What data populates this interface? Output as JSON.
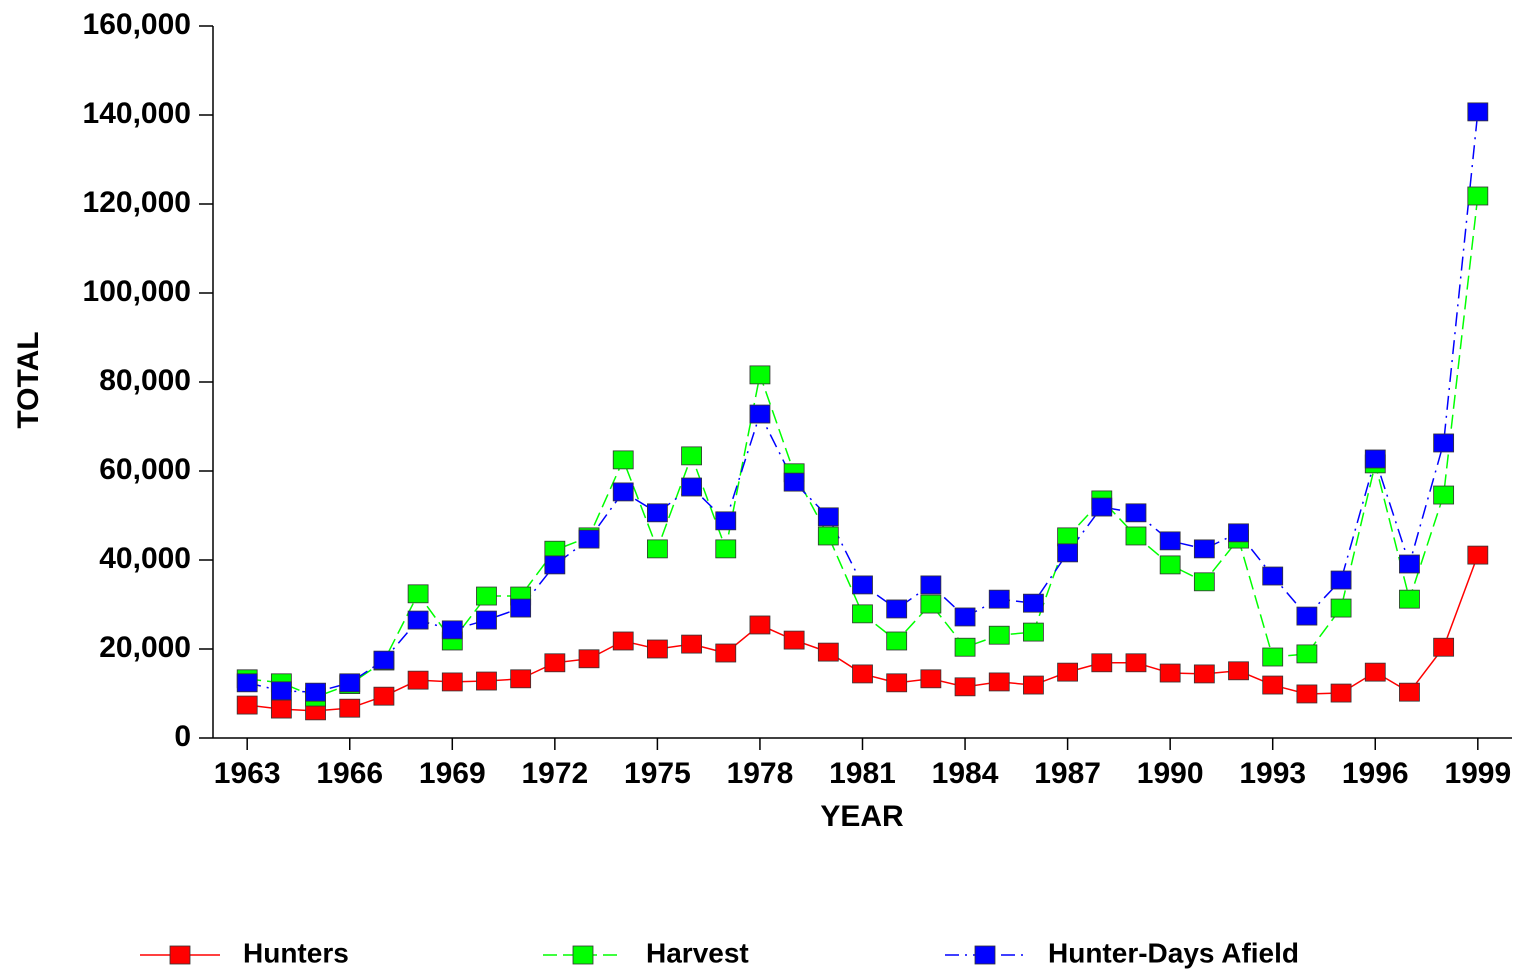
{
  "chart_data": {
    "type": "line",
    "x": [
      1963,
      1964,
      1965,
      1966,
      1967,
      1968,
      1969,
      1970,
      1971,
      1972,
      1973,
      1974,
      1975,
      1976,
      1977,
      1978,
      1979,
      1980,
      1981,
      1982,
      1983,
      1984,
      1985,
      1986,
      1987,
      1988,
      1989,
      1990,
      1991,
      1992,
      1993,
      1994,
      1995,
      1996,
      1997,
      1998,
      1999
    ],
    "series": [
      {
        "name": "Hunters",
        "color": "#ff0000",
        "style": "solid",
        "values": [
          7400,
          6500,
          6100,
          6700,
          9400,
          13000,
          12600,
          12800,
          13300,
          16900,
          17800,
          21800,
          20000,
          21100,
          19100,
          25400,
          22000,
          19300,
          14400,
          12400,
          13300,
          11500,
          12600,
          11900,
          14800,
          16900,
          16900,
          14600,
          14400,
          15100,
          11900,
          9900,
          10100,
          14800,
          10300,
          20400,
          41100
        ]
      },
      {
        "name": "Harvest",
        "color": "#00ff00",
        "style": "dashed",
        "values": [
          13300,
          12400,
          9200,
          12000,
          17300,
          32400,
          21800,
          31900,
          31900,
          42200,
          45200,
          62500,
          42500,
          63400,
          42500,
          81600,
          59600,
          45400,
          27900,
          21800,
          30100,
          20400,
          23100,
          23800,
          45200,
          53500,
          45400,
          38900,
          35100,
          44700,
          18200,
          18900,
          29200,
          61600,
          31200,
          54600,
          121800
        ]
      },
      {
        "name": "Hunter-Days Afield",
        "color": "#0000ff",
        "style": "dashdot",
        "values": [
          12400,
          10600,
          10300,
          12400,
          17500,
          26500,
          24300,
          26500,
          29200,
          38900,
          44700,
          55300,
          50600,
          56400,
          48800,
          72800,
          57500,
          49700,
          34400,
          29000,
          34400,
          27200,
          31200,
          30300,
          41600,
          51900,
          50600,
          44300,
          42500,
          46100,
          36400,
          27400,
          35500,
          62700,
          39100,
          66300,
          140700
        ]
      }
    ],
    "x_label": "YEAR",
    "y_label": "TOTAL",
    "xlim": [
      1962,
      2000
    ],
    "xticks": [
      1963,
      1966,
      1969,
      1972,
      1975,
      1978,
      1981,
      1984,
      1987,
      1990,
      1993,
      1996,
      1999
    ],
    "ylim": [
      0,
      160000
    ],
    "yticks": [
      0,
      {
        "value": 20000,
        "label": "20,000"
      },
      {
        "value": 40000,
        "label": "40,000"
      },
      {
        "value": 60000,
        "label": "60,000"
      },
      {
        "value": 80000,
        "label": "80,000"
      },
      {
        "value": 100000,
        "label": "100,000"
      },
      {
        "value": 120000,
        "label": "120,000"
      },
      {
        "value": 140000,
        "label": "140,000"
      },
      {
        "value": 160000,
        "label": "160,000"
      }
    ],
    "legend": "bottom",
    "grid": false
  }
}
